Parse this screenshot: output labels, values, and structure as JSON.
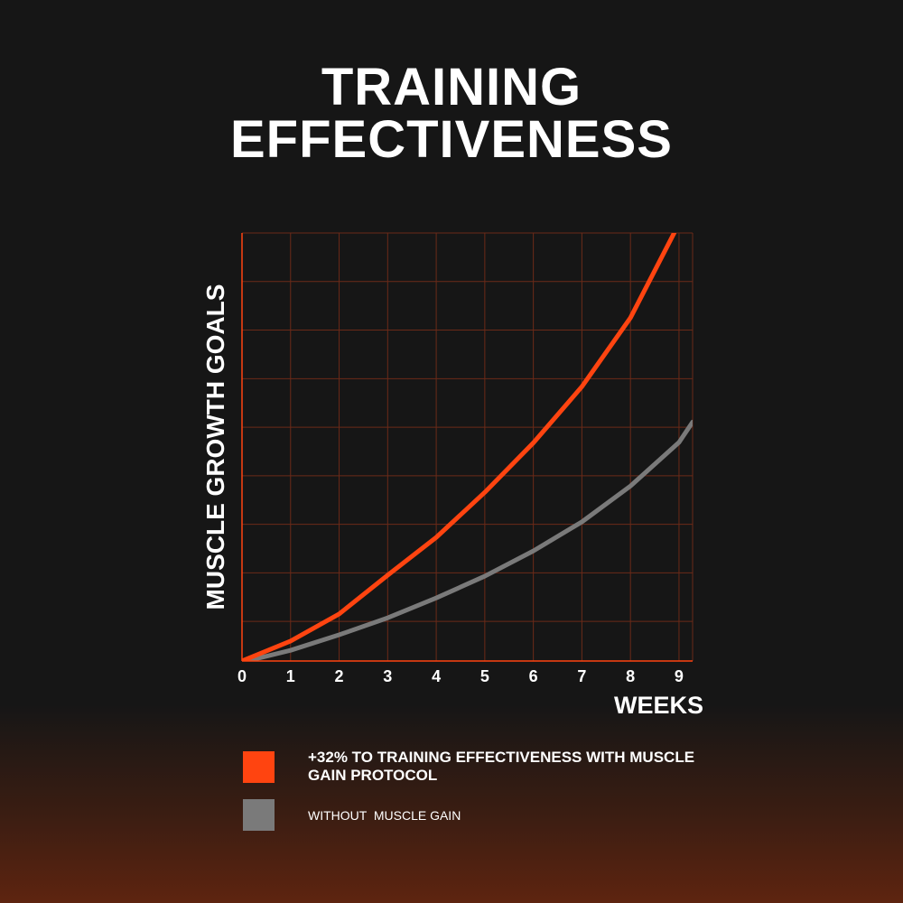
{
  "chart_data": {
    "type": "line",
    "title": "TRAINING EFFECTIVENESS",
    "x_label": "WEEKS",
    "y_label": "MUSCLE GROWTH GOALS",
    "xlim": [
      0,
      9.28
    ],
    "xticks": [
      0,
      1,
      2,
      3,
      4,
      5,
      6,
      7,
      8,
      9
    ],
    "ylim": [
      0,
      8.83
    ],
    "grid": true,
    "series": [
      {
        "name": "+32% TO TRAINING EFFECTIVENESS WITH MUSCLE GAIN PROTOCOL",
        "color": "#ff4410",
        "x": [
          0,
          1,
          2,
          3,
          4,
          5,
          6,
          7,
          8,
          8.9
        ],
        "values": [
          0,
          0.41,
          0.97,
          1.77,
          2.55,
          3.48,
          4.5,
          5.66,
          7.08,
          8.83
        ]
      },
      {
        "name": "WITHOUT  MUSCLE GAIN",
        "color": "#7a7a7a",
        "x": [
          0.1,
          1,
          2,
          3,
          4,
          5,
          6,
          7,
          8,
          9,
          9.28
        ],
        "values": [
          0,
          0.22,
          0.54,
          0.89,
          1.3,
          1.75,
          2.27,
          2.87,
          3.61,
          4.51,
          4.93
        ]
      }
    ]
  }
}
